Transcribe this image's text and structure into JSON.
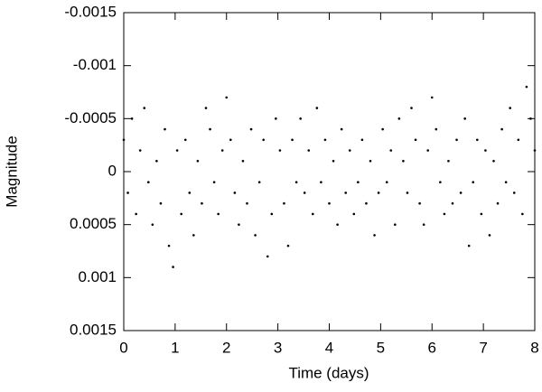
{
  "chart_data": {
    "type": "scatter",
    "x_label": "Time (days)",
    "y_label": "Magnitude",
    "xlim": [
      0,
      8
    ],
    "xticks": [
      0,
      1,
      2,
      3,
      4,
      5,
      6,
      7,
      8
    ],
    "ylim": [
      0.0015,
      -0.0015
    ],
    "yticks": [
      -0.0015,
      -0.001,
      -0.0005,
      0,
      0.0005,
      0.001,
      0.0015
    ],
    "color": "#000000",
    "x": [
      0,
      0.08,
      0.16,
      0.24,
      0.32,
      0.4,
      0.48,
      0.56,
      0.64,
      0.72,
      0.8,
      0.88,
      0.96,
      1.04,
      1.12,
      1.2,
      1.28,
      1.36,
      1.44,
      1.52,
      1.6,
      1.68,
      1.76,
      1.84,
      1.92,
      2,
      2.08,
      2.16,
      2.24,
      2.32,
      2.4,
      2.48,
      2.56,
      2.64,
      2.72,
      2.8,
      2.88,
      2.96,
      3.04,
      3.12,
      3.2,
      3.28,
      3.36,
      3.44,
      3.52,
      3.6,
      3.68,
      3.76,
      3.84,
      3.92,
      4,
      4.08,
      4.16,
      4.24,
      4.32,
      4.4,
      4.48,
      4.56,
      4.64,
      4.72,
      4.8,
      4.88,
      4.96,
      5.04,
      5.12,
      5.2,
      5.28,
      5.36,
      5.44,
      5.52,
      5.6,
      5.68,
      5.76,
      5.84,
      5.92,
      6,
      6.08,
      6.16,
      6.24,
      6.32,
      6.4,
      6.48,
      6.56,
      6.64,
      6.72,
      6.8,
      6.88,
      6.96,
      7.04,
      7.12,
      7.2,
      7.28,
      7.36,
      7.44,
      7.52,
      7.6,
      7.68,
      7.76,
      7.84,
      7.92,
      8
    ],
    "values": [
      -0.0003,
      0.0002,
      -0.0005,
      0.0004,
      -0.0002,
      -0.0006,
      0.0001,
      0.0005,
      -0.0001,
      0.0003,
      -0.0004,
      0.0007,
      0.0009,
      -0.0002,
      0.0004,
      -0.0003,
      0.0002,
      0.0006,
      -0.0001,
      0.0003,
      -0.0006,
      -0.0004,
      0.0001,
      0.0004,
      -0.0002,
      -0.0007,
      -0.0003,
      0.0002,
      0.0005,
      -0.0001,
      0.0003,
      -0.0004,
      0.0006,
      0.0001,
      -0.0003,
      0.0008,
      0.0004,
      -0.0005,
      -0.0002,
      0.0003,
      0.0007,
      -0.0003,
      0.0001,
      -0.0005,
      0.0002,
      -0.0002,
      0.0004,
      -0.0006,
      0.0001,
      -0.0003,
      0.0003,
      -0.0001,
      0.0005,
      -0.0004,
      0.0002,
      -0.0002,
      0.0004,
      0.0001,
      -0.0003,
      0.0003,
      -0.0001,
      0.0006,
      0.0002,
      -0.0004,
      0.0001,
      -0.0002,
      0.0005,
      -0.0005,
      -0.0001,
      0.0002,
      -0.0006,
      -0.0003,
      0.0003,
      0.0005,
      -0.0002,
      -0.0007,
      -0.0004,
      0.0001,
      0.0004,
      -0.0001,
      0.0003,
      -0.0003,
      0.0002,
      -0.0005,
      0.0007,
      0.0001,
      -0.0003,
      0.0004,
      -0.0002,
      0.0006,
      -0.0001,
      0.0003,
      -0.0004,
      0.0001,
      -0.0006,
      0.0002,
      -0.0003,
      0.0004,
      -0.0008,
      -0.0005,
      -0.0002
    ]
  }
}
